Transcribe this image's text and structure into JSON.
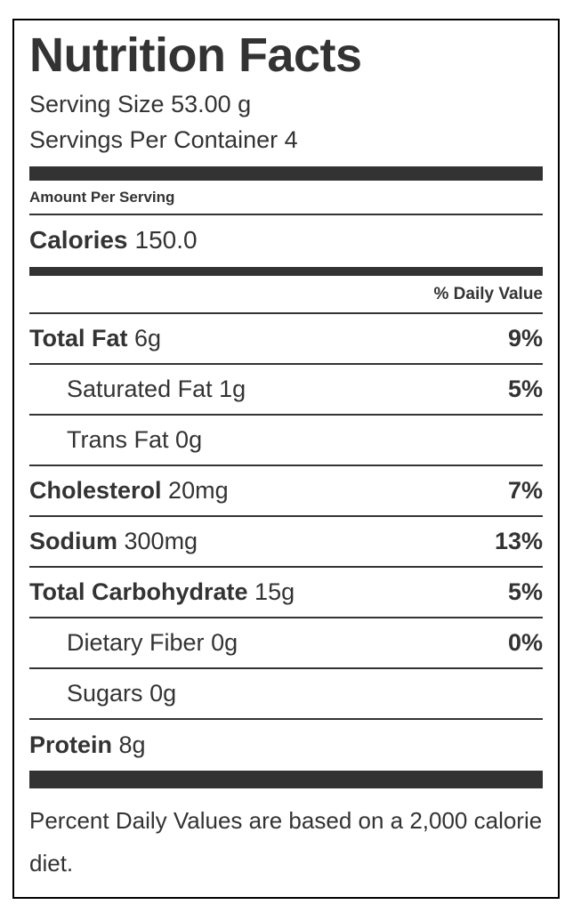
{
  "label": {
    "title": "Nutrition Facts",
    "serving_size": "Serving Size 53.00 g",
    "servings_per_container": "Servings Per Container 4",
    "amount_per_serving": "Amount Per Serving",
    "calories_label": "Calories",
    "calories_value": "150.0",
    "daily_value_header": "% Daily Value",
    "rows": [
      {
        "name": "Total Fat",
        "amount": "6g",
        "dv": "9%"
      },
      {
        "name": "Saturated Fat",
        "amount": "1g",
        "dv": "5%"
      },
      {
        "name": "Trans Fat",
        "amount": "0g",
        "dv": ""
      },
      {
        "name": "Cholesterol",
        "amount": "20mg",
        "dv": "7%"
      },
      {
        "name": "Sodium",
        "amount": "300mg",
        "dv": "13%"
      },
      {
        "name": "Total Carbohydrate",
        "amount": "15g",
        "dv": "5%"
      },
      {
        "name": "Dietary Fiber",
        "amount": "0g",
        "dv": "0%"
      },
      {
        "name": "Sugars",
        "amount": "0g",
        "dv": ""
      },
      {
        "name": "Protein",
        "amount": "8g",
        "dv": ""
      }
    ],
    "footnote": "Percent Daily Values are based on a 2,000 calorie diet.",
    "colors": {
      "text": "#333333",
      "bar": "#333333",
      "border": "#000000",
      "background": "#ffffff"
    }
  }
}
